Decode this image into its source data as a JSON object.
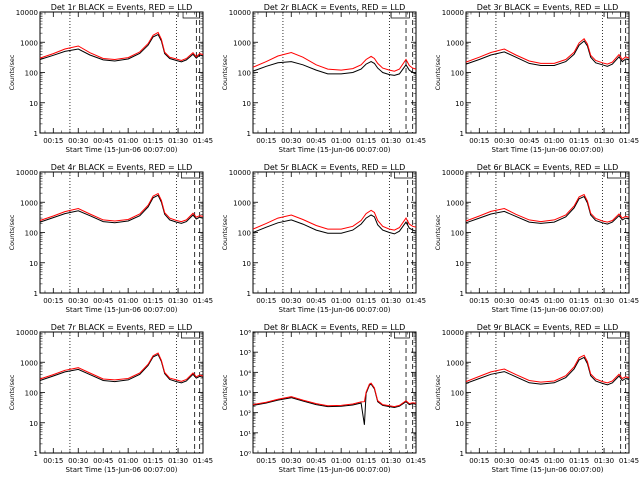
{
  "figure": {
    "x_tick_labels": [
      "00:15",
      "00:30",
      "00:45",
      "01:00",
      "01:15",
      "01:30",
      "01:45"
    ],
    "xlabel": "Start Time (15-Jun-06 00:07:00)",
    "ylabel": "Counts/sec",
    "colors": {
      "events": "#000000",
      "lld": "#ff0000",
      "background": "#ffffff"
    }
  },
  "chart_data": [
    {
      "type": "line",
      "title": "Det 1r BLACK = Events, RED = LLD",
      "y_scale": "log",
      "ylim": [
        1,
        10000
      ],
      "y_tick_labels": [
        "1",
        "10",
        "100",
        "1000",
        "10000"
      ],
      "xlim_minutes": [
        7,
        105
      ],
      "vlines_dotted_minutes": [
        25,
        89
      ],
      "vlines_dashed_minutes": [
        101,
        103
      ],
      "flag_box_minutes": [
        93,
        103
      ],
      "x_minutes": [
        7,
        15,
        22,
        30,
        37,
        45,
        52,
        60,
        67,
        72,
        75,
        78,
        80,
        82,
        85,
        89,
        92,
        95,
        99,
        101,
        103,
        105
      ],
      "series": [
        {
          "name": "Events",
          "values": [
            270,
            370,
            500,
            600,
            380,
            260,
            240,
            280,
            430,
            800,
            1500,
            1800,
            1100,
            420,
            290,
            250,
            225,
            260,
            400,
            300,
            380,
            350
          ]
        },
        {
          "name": "LLD",
          "values": [
            300,
            420,
            600,
            750,
            450,
            290,
            270,
            310,
            480,
            900,
            1700,
            2100,
            1250,
            470,
            320,
            280,
            250,
            290,
            450,
            330,
            420,
            390
          ]
        }
      ]
    },
    {
      "type": "line",
      "title": "Det 2r BLACK = Events, RED = LLD",
      "y_scale": "log",
      "ylim": [
        1,
        10000
      ],
      "y_tick_labels": [
        "1",
        "10",
        "100",
        "1000",
        "10000"
      ],
      "xlim_minutes": [
        7,
        105
      ],
      "vlines_dotted_minutes": [
        25,
        89
      ],
      "vlines_dashed_minutes": [
        99,
        103
      ],
      "flag_box_minutes": [
        90,
        101
      ],
      "x_minutes": [
        7,
        15,
        22,
        30,
        37,
        45,
        52,
        60,
        67,
        72,
        75,
        78,
        80,
        82,
        85,
        89,
        92,
        95,
        99,
        101,
        103,
        105
      ],
      "series": [
        {
          "name": "Events",
          "values": [
            110,
            160,
            210,
            230,
            180,
            120,
            90,
            90,
            100,
            130,
            190,
            230,
            200,
            140,
            100,
            85,
            80,
            90,
            180,
            120,
            100,
            95
          ]
        },
        {
          "name": "LLD",
          "values": [
            150,
            230,
            350,
            460,
            320,
            180,
            130,
            120,
            135,
            180,
            270,
            340,
            290,
            200,
            140,
            120,
            110,
            130,
            270,
            170,
            140,
            130
          ]
        }
      ]
    },
    {
      "type": "line",
      "title": "Det 3r BLACK = Events, RED = LLD",
      "y_scale": "log",
      "ylim": [
        1,
        10000
      ],
      "y_tick_labels": [
        "1",
        "10",
        "100",
        "1000",
        "10000"
      ],
      "xlim_minutes": [
        7,
        105
      ],
      "vlines_dotted_minutes": [
        25,
        89
      ],
      "vlines_dashed_minutes": [
        100,
        103
      ],
      "flag_box_minutes": [
        92,
        103
      ],
      "x_minutes": [
        7,
        15,
        22,
        30,
        37,
        45,
        52,
        60,
        67,
        72,
        75,
        78,
        80,
        82,
        85,
        89,
        92,
        95,
        99,
        101,
        103,
        105
      ],
      "series": [
        {
          "name": "Events",
          "values": [
            190,
            270,
            380,
            480,
            320,
            200,
            170,
            170,
            230,
            400,
            800,
            1100,
            750,
            320,
            210,
            180,
            160,
            190,
            330,
            230,
            280,
            260
          ]
        },
        {
          "name": "LLD",
          "values": [
            220,
            320,
            460,
            600,
            380,
            240,
            200,
            200,
            270,
            470,
            950,
            1300,
            880,
            370,
            250,
            210,
            190,
            220,
            390,
            270,
            330,
            300
          ]
        }
      ]
    },
    {
      "type": "line",
      "title": "Det 4r BLACK = Events, RED = LLD",
      "y_scale": "log",
      "ylim": [
        1,
        10000
      ],
      "y_tick_labels": [
        "1",
        "10",
        "100",
        "1000",
        "10000"
      ],
      "xlim_minutes": [
        7,
        105
      ],
      "vlines_dotted_minutes": [
        25,
        89
      ],
      "vlines_dashed_minutes": [
        100,
        103
      ],
      "flag_box_minutes": [
        92,
        103
      ],
      "x_minutes": [
        7,
        15,
        22,
        30,
        37,
        45,
        52,
        60,
        67,
        72,
        75,
        78,
        80,
        82,
        85,
        89,
        92,
        95,
        99,
        101,
        103,
        105
      ],
      "series": [
        {
          "name": "Events",
          "values": [
            220,
            310,
            420,
            520,
            360,
            230,
            210,
            240,
            360,
            700,
            1400,
            1700,
            1000,
            400,
            260,
            220,
            200,
            230,
            380,
            280,
            320,
            300
          ]
        },
        {
          "name": "LLD",
          "values": [
            250,
            350,
            490,
            620,
            410,
            260,
            240,
            270,
            410,
            800,
            1600,
            1950,
            1150,
            450,
            300,
            250,
            230,
            260,
            430,
            320,
            360,
            340
          ]
        }
      ]
    },
    {
      "type": "line",
      "title": "Det 5r BLACK = Events, RED = LLD",
      "y_scale": "log",
      "ylim": [
        1,
        10000
      ],
      "y_tick_labels": [
        "1",
        "10",
        "100",
        "1000",
        "10000"
      ],
      "xlim_minutes": [
        7,
        105
      ],
      "vlines_dotted_minutes": [
        25,
        89
      ],
      "vlines_dashed_minutes": [
        100,
        103
      ],
      "flag_box_minutes": [
        92,
        103
      ],
      "x_minutes": [
        7,
        15,
        22,
        30,
        37,
        45,
        52,
        60,
        67,
        72,
        75,
        78,
        80,
        82,
        85,
        89,
        92,
        95,
        99,
        101,
        103,
        105
      ],
      "series": [
        {
          "name": "Events",
          "values": [
            100,
            150,
            210,
            260,
            190,
            120,
            95,
            95,
            120,
            190,
            300,
            380,
            330,
            180,
            120,
            100,
            90,
            110,
            220,
            140,
            120,
            110
          ]
        },
        {
          "name": "LLD",
          "values": [
            130,
            200,
            300,
            380,
            270,
            170,
            130,
            130,
            160,
            250,
            420,
            540,
            460,
            250,
            160,
            130,
            120,
            145,
            300,
            190,
            160,
            150
          ]
        }
      ]
    },
    {
      "type": "line",
      "title": "Det 6r BLACK = Events, RED = LLD",
      "y_scale": "log",
      "ylim": [
        1,
        10000
      ],
      "y_tick_labels": [
        "1",
        "10",
        "100",
        "1000",
        "10000"
      ],
      "xlim_minutes": [
        7,
        105
      ],
      "vlines_dotted_minutes": [
        25,
        89
      ],
      "vlines_dashed_minutes": [
        100,
        103
      ],
      "flag_box_minutes": [
        92,
        103
      ],
      "x_minutes": [
        7,
        15,
        22,
        30,
        37,
        45,
        52,
        60,
        67,
        72,
        75,
        78,
        80,
        82,
        85,
        89,
        92,
        95,
        99,
        101,
        103,
        105
      ],
      "series": [
        {
          "name": "Events",
          "values": [
            210,
            300,
            410,
            500,
            340,
            220,
            200,
            220,
            330,
            650,
            1300,
            1550,
            950,
            380,
            250,
            210,
            190,
            220,
            360,
            260,
            300,
            280
          ]
        },
        {
          "name": "LLD",
          "values": [
            240,
            350,
            500,
            620,
            400,
            260,
            230,
            260,
            380,
            750,
            1500,
            1800,
            1100,
            430,
            290,
            240,
            220,
            250,
            410,
            300,
            340,
            320
          ]
        }
      ]
    },
    {
      "type": "line",
      "title": "Det 7r BLACK = Events, RED = LLD",
      "y_scale": "log",
      "ylim": [
        1,
        10000
      ],
      "y_tick_labels": [
        "1",
        "10",
        "100",
        "1000",
        "10000"
      ],
      "xlim_minutes": [
        7,
        105
      ],
      "vlines_dotted_minutes": [
        25,
        89
      ],
      "vlines_dashed_minutes": [
        100,
        103
      ],
      "flag_box_minutes": [
        92,
        103
      ],
      "x_minutes": [
        7,
        15,
        22,
        30,
        37,
        45,
        52,
        60,
        67,
        72,
        75,
        78,
        80,
        82,
        85,
        89,
        92,
        95,
        99,
        101,
        103,
        105
      ],
      "series": [
        {
          "name": "Events",
          "values": [
            250,
            350,
            480,
            580,
            390,
            250,
            230,
            260,
            400,
            780,
            1500,
            1800,
            1050,
            420,
            270,
            230,
            210,
            240,
            400,
            300,
            340,
            320
          ]
        },
        {
          "name": "LLD",
          "values": [
            280,
            390,
            540,
            660,
            440,
            280,
            260,
            290,
            440,
            860,
            1650,
            2000,
            1150,
            460,
            300,
            260,
            235,
            270,
            440,
            330,
            380,
            350
          ]
        }
      ]
    },
    {
      "type": "line",
      "title": "Det 8r BLACK = Events, RED = LLD",
      "y_scale": "log",
      "ylim": [
        1,
        1000000
      ],
      "y_tick_labels": [
        "10⁰",
        "10¹",
        "10²",
        "10³",
        "10⁴",
        "10⁵",
        "10⁶"
      ],
      "xlim_minutes": [
        7,
        105
      ],
      "vlines_dotted_minutes": [
        25,
        89
      ],
      "vlines_dashed_minutes": [
        99,
        103
      ],
      "flag_box_minutes": [
        92,
        101
      ],
      "x_minutes": [
        7,
        15,
        22,
        30,
        37,
        45,
        52,
        60,
        67,
        72,
        74,
        75,
        77,
        78,
        80,
        82,
        85,
        89,
        92,
        95,
        99,
        101,
        103,
        105
      ],
      "series": [
        {
          "name": "Events",
          "values": [
            230,
            300,
            420,
            550,
            380,
            250,
            200,
            210,
            240,
            300,
            25,
            900,
            2300,
            2600,
            1500,
            350,
            230,
            200,
            180,
            210,
            350,
            250,
            280,
            260
          ]
        },
        {
          "name": "LLD",
          "values": [
            250,
            330,
            460,
            620,
            420,
            280,
            220,
            230,
            270,
            340,
            350,
            1050,
            2600,
            2900,
            1700,
            390,
            250,
            220,
            200,
            230,
            390,
            280,
            310,
            290
          ]
        }
      ]
    },
    {
      "type": "line",
      "title": "Det 9r BLACK = Events, RED = LLD",
      "y_scale": "log",
      "ylim": [
        1,
        10000
      ],
      "y_tick_labels": [
        "1",
        "10",
        "100",
        "1000",
        "10000"
      ],
      "xlim_minutes": [
        7,
        105
      ],
      "vlines_dotted_minutes": [
        25,
        89
      ],
      "vlines_dashed_minutes": [
        100,
        103
      ],
      "flag_box_minutes": [
        92,
        103
      ],
      "x_minutes": [
        7,
        15,
        22,
        30,
        37,
        45,
        52,
        60,
        67,
        72,
        75,
        78,
        80,
        82,
        85,
        89,
        92,
        95,
        99,
        101,
        103,
        105
      ],
      "series": [
        {
          "name": "Events",
          "values": [
            200,
            290,
            400,
            490,
            330,
            210,
            190,
            210,
            310,
            600,
            1200,
            1450,
            900,
            360,
            240,
            200,
            180,
            210,
            350,
            250,
            290,
            270
          ]
        },
        {
          "name": "LLD",
          "values": [
            230,
            340,
            480,
            600,
            390,
            250,
            220,
            240,
            360,
            700,
            1400,
            1700,
            1050,
            410,
            280,
            230,
            210,
            240,
            400,
            290,
            330,
            310
          ]
        }
      ]
    }
  ]
}
